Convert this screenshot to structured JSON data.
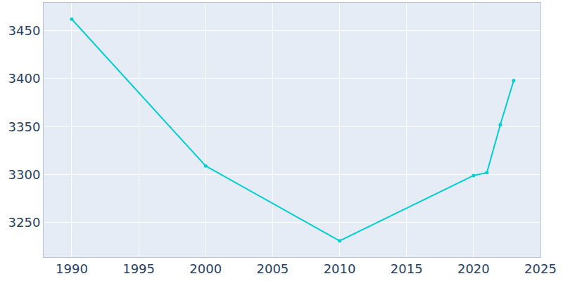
{
  "chart_data": {
    "type": "line",
    "x": [
      1990,
      2000,
      2010,
      2020,
      2021,
      2022,
      2023
    ],
    "values": [
      3462,
      3309,
      3231,
      3299,
      3302,
      3352,
      3398
    ],
    "color": "#00ced1",
    "marker": "circle",
    "xlim": [
      1987.9,
      2025
    ],
    "ylim": [
      3214,
      3479
    ],
    "xticks": [
      1990,
      1995,
      2000,
      2005,
      2010,
      2015,
      2020,
      2025
    ],
    "yticks": [
      3250,
      3300,
      3350,
      3400,
      3450
    ],
    "grid": true
  }
}
